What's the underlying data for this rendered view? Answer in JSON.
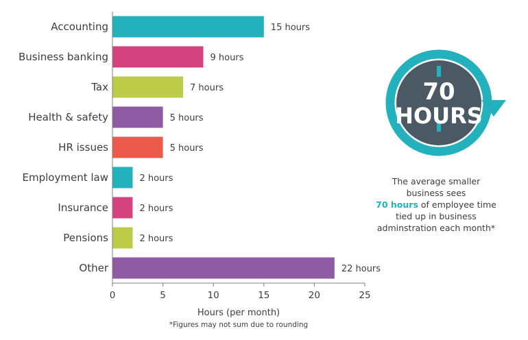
{
  "chart_data": {
    "type": "bar",
    "orientation": "horizontal",
    "categories": [
      "Accounting",
      "Business banking",
      "Tax",
      "Health & safety",
      "HR issues",
      "Employment law",
      "Insurance",
      "Pensions",
      "Other"
    ],
    "values": [
      15,
      9,
      7,
      5,
      5,
      2,
      2,
      2,
      22
    ],
    "value_labels": [
      "15 hours",
      "9 hours",
      "7 hours",
      "5 hours",
      "5 hours",
      "2 hours",
      "2 hours",
      "2 hours",
      "22 hours"
    ],
    "bar_colors": [
      "#23b1bd",
      "#d3437f",
      "#bccc49",
      "#8f5ba3",
      "#ec5a4b",
      "#23b1bd",
      "#d3437f",
      "#bccc49",
      "#8f5ba3"
    ],
    "xlabel": "Hours (per month)",
    "xlim": [
      0,
      25
    ],
    "xticks": [
      0,
      5,
      10,
      15,
      20,
      25
    ],
    "grid": false,
    "footnote": "*Figures may not sum due to rounding"
  },
  "clock": {
    "line1": "70",
    "line2": "HOURS",
    "ring_color": "#23b1bd",
    "face_color": "#4b5965",
    "icon": "clock-icon"
  },
  "callout": {
    "line1": "The average smaller",
    "line2": "business sees",
    "highlight": "70 hours",
    "line3_rest": " of employee time",
    "line4": "tied up in business",
    "line5": "adminstration each month*"
  }
}
